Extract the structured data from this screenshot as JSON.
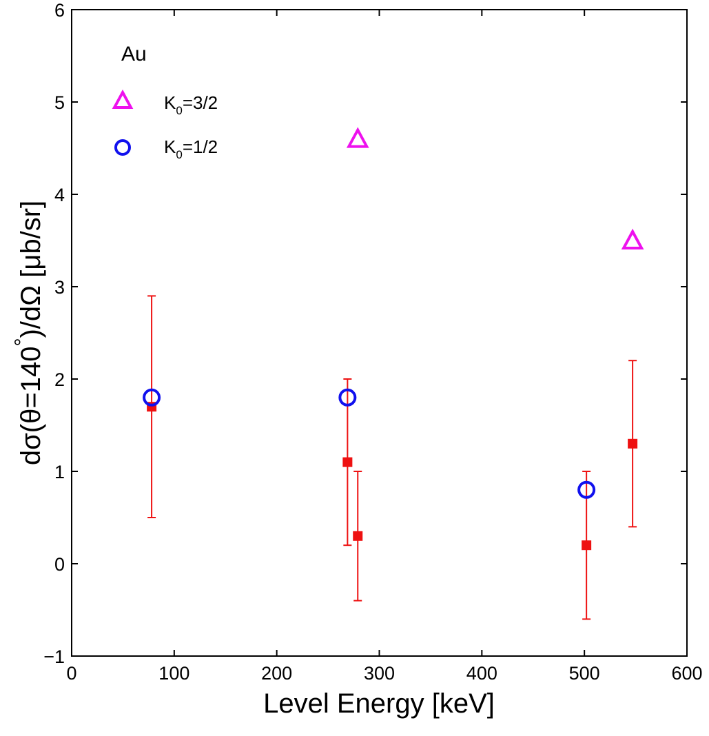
{
  "chart_data": {
    "type": "scatter",
    "xlabel": "Level Energy [keV]",
    "ylabel_parts": {
      "prefix": "dσ(θ=140",
      "degree": "°",
      "suffix": ")/dΩ [μb/sr]"
    },
    "xlim": [
      0,
      600
    ],
    "ylim": [
      -1,
      6
    ],
    "xticks": [
      0,
      100,
      200,
      300,
      400,
      500,
      600
    ],
    "yticks": [
      -1,
      0,
      1,
      2,
      3,
      4,
      5,
      6
    ],
    "xtick_labels": [
      "0",
      "100",
      "200",
      "300",
      "400",
      "500",
      "600"
    ],
    "ytick_labels": [
      "−1",
      "0",
      "1",
      "2",
      "3",
      "4",
      "5",
      "6"
    ],
    "grid": false,
    "annotation": "Au",
    "legend": {
      "placement": "top-left",
      "entries": [
        {
          "series": "k32",
          "main": "K",
          "sub": "0",
          "rest": "=3/2"
        },
        {
          "series": "k12",
          "main": "K",
          "sub": "0",
          "rest": "=1/2"
        }
      ]
    },
    "series": [
      {
        "key": "measured",
        "marker": "filled-square",
        "color": "#ee1111",
        "points": [
          {
            "x": 78,
            "y": 1.7,
            "ylow": 0.5,
            "yhigh": 2.9
          },
          {
            "x": 269,
            "y": 1.1,
            "ylow": 0.2,
            "yhigh": 2.0
          },
          {
            "x": 279,
            "y": 0.3,
            "ylow": -0.4,
            "yhigh": 1.0
          },
          {
            "x": 502,
            "y": 0.2,
            "ylow": -0.6,
            "yhigh": 1.0
          },
          {
            "x": 547,
            "y": 1.3,
            "ylow": 0.4,
            "yhigh": 2.2
          }
        ]
      },
      {
        "key": "k32",
        "marker": "triangle",
        "color": "#ee11ee",
        "points": [
          {
            "x": 279,
            "y": 4.6
          },
          {
            "x": 547,
            "y": 3.5
          }
        ]
      },
      {
        "key": "k12",
        "marker": "circle",
        "color": "#1111ee",
        "points": [
          {
            "x": 78,
            "y": 1.8
          },
          {
            "x": 269,
            "y": 1.8
          },
          {
            "x": 502,
            "y": 0.8
          }
        ]
      }
    ]
  }
}
